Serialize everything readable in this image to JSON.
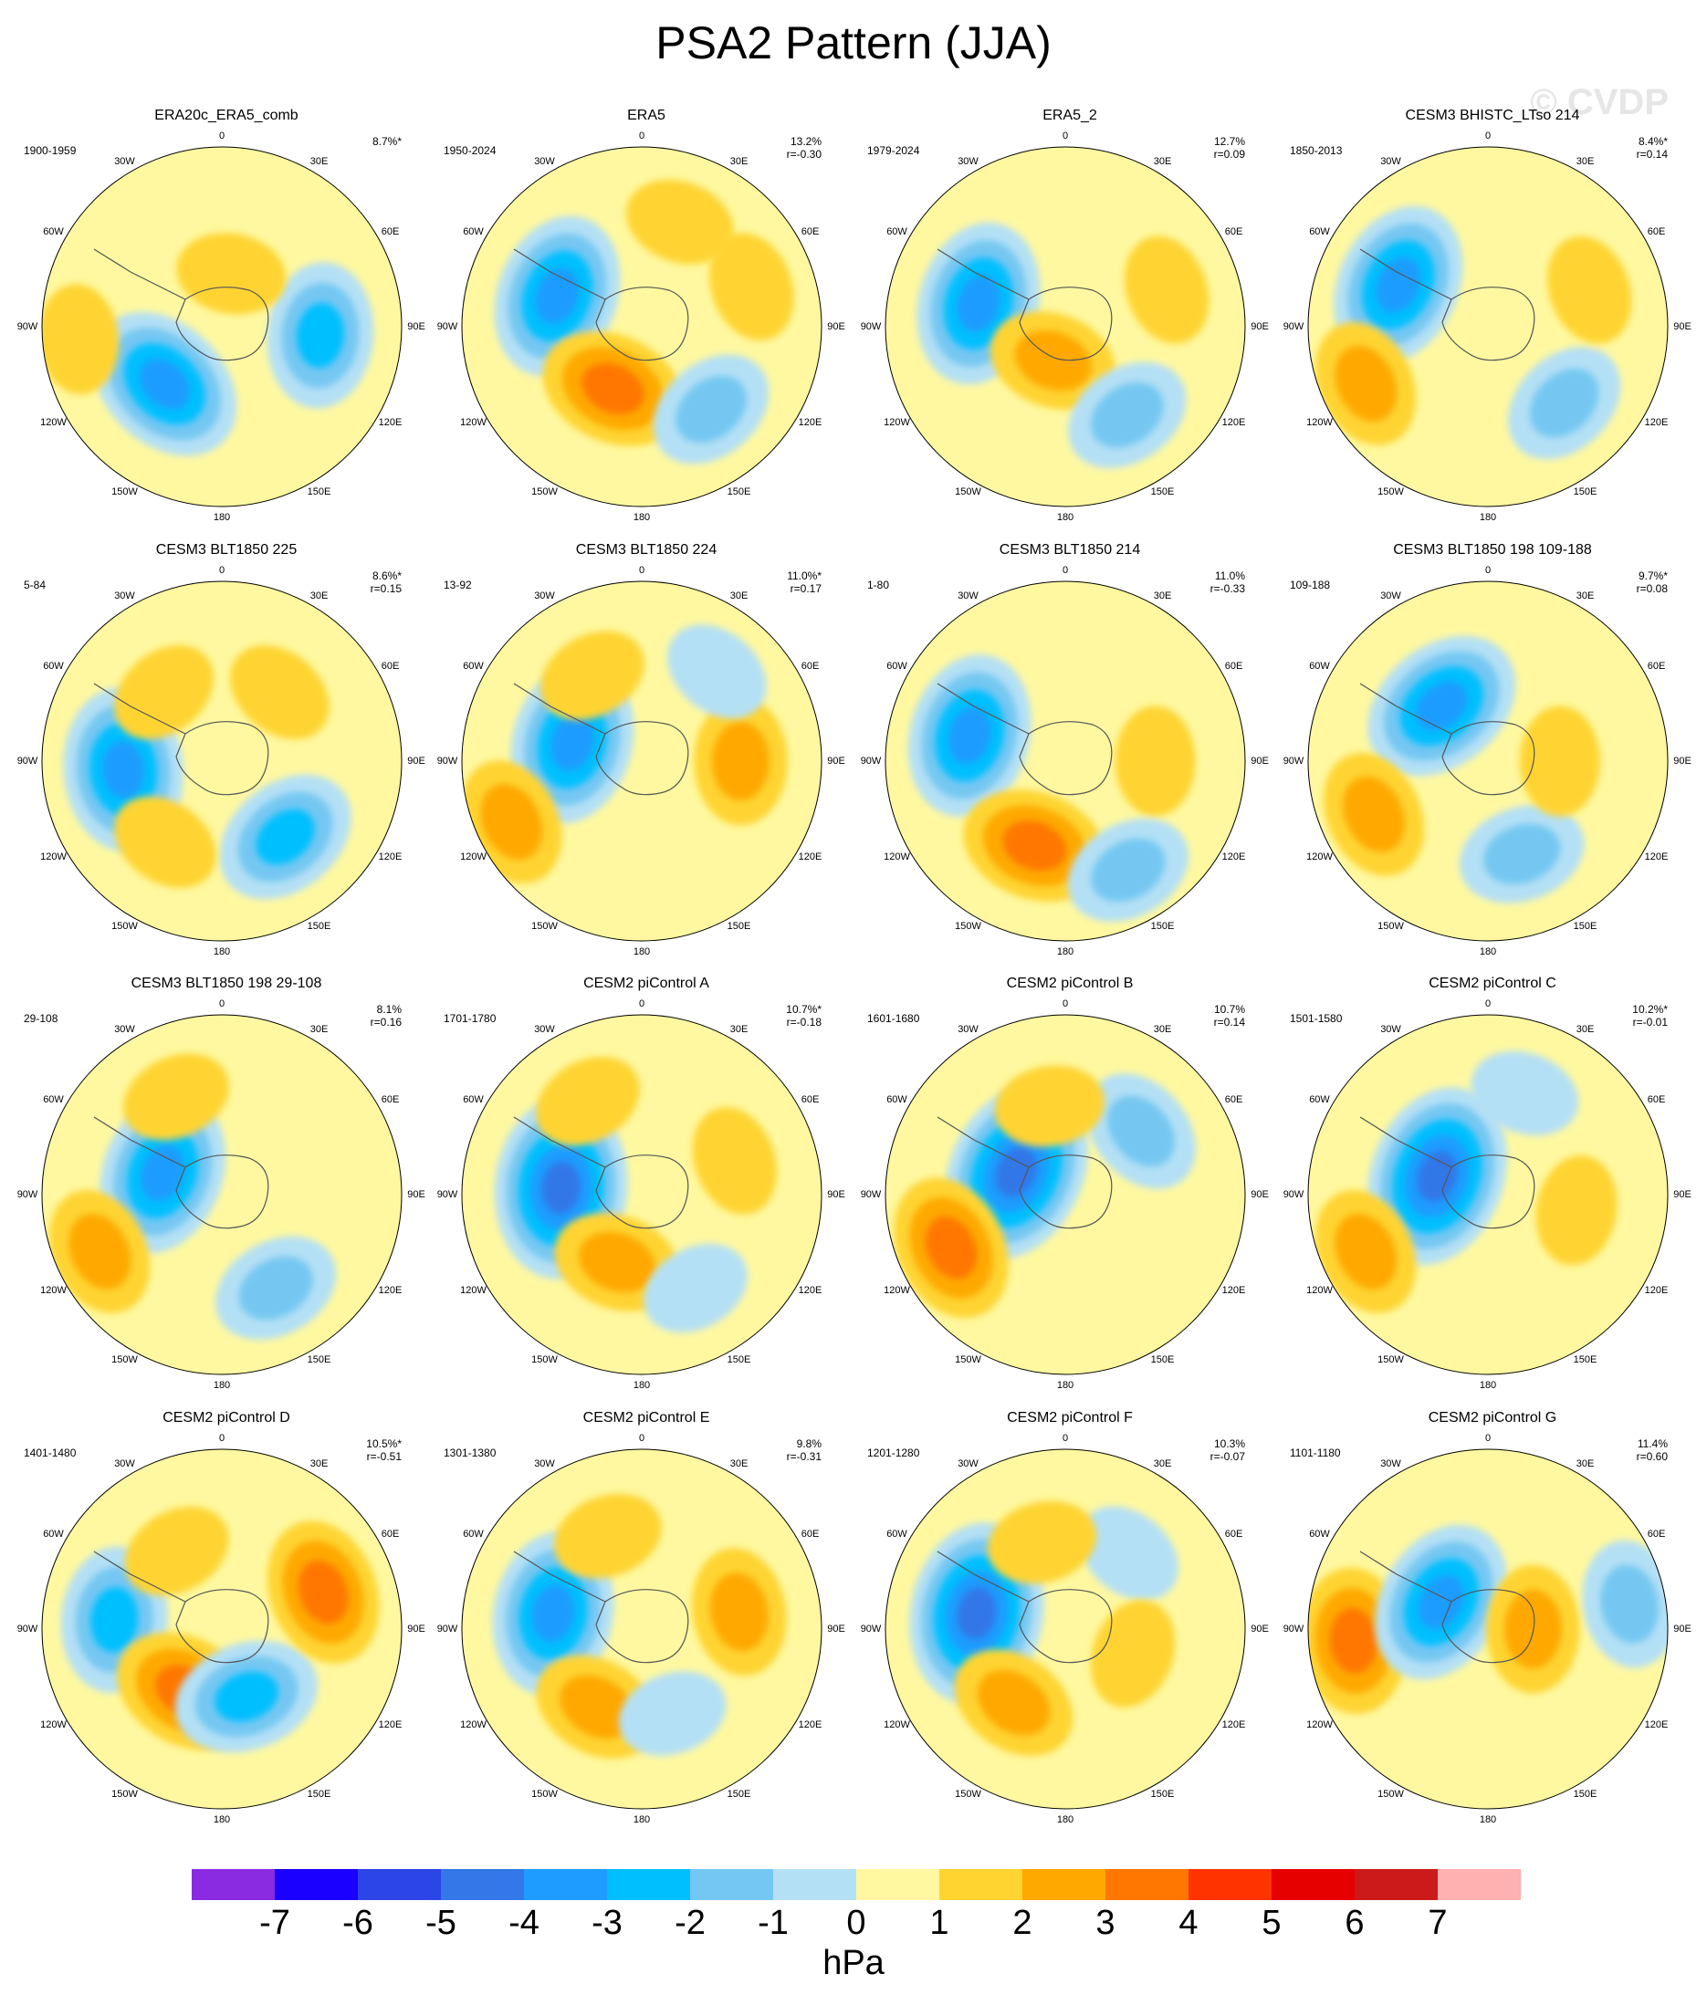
{
  "title": "PSA2 Pattern (JJA)",
  "watermark": "© CVDP",
  "longitude_labels": [
    "0",
    "30E",
    "60E",
    "90E",
    "120E",
    "150E",
    "180",
    "150W",
    "120W",
    "90W",
    "60W",
    "30W"
  ],
  "panels": [
    {
      "title": "ERA20c_ERA5_comb",
      "period": "1900-1959",
      "pct": "8.7%*",
      "r": "",
      "blobs": [
        {
          "lon": 225,
          "lat": 0.45,
          "v": -4
        },
        {
          "lon": 95,
          "lat": 0.55,
          "v": -3
        },
        {
          "lon": 265,
          "lat": 0.8,
          "v": 1
        },
        {
          "lon": 10,
          "lat": 0.3,
          "v": 1
        }
      ]
    },
    {
      "title": "ERA5",
      "period": "1950-2024",
      "pct": "13.2%",
      "r": "r=-0.30",
      "blobs": [
        {
          "lon": 290,
          "lat": 0.5,
          "v": -4
        },
        {
          "lon": 205,
          "lat": 0.38,
          "v": 3
        },
        {
          "lon": 140,
          "lat": 0.6,
          "v": -2
        },
        {
          "lon": 70,
          "lat": 0.65,
          "v": 1
        },
        {
          "lon": 20,
          "lat": 0.62,
          "v": 1
        }
      ]
    },
    {
      "title": "ERA5_2",
      "period": "1979-2024",
      "pct": "12.7%",
      "r": "r=0.09",
      "blobs": [
        {
          "lon": 285,
          "lat": 0.5,
          "v": -4
        },
        {
          "lon": 200,
          "lat": 0.2,
          "v": 2
        },
        {
          "lon": 145,
          "lat": 0.6,
          "v": -2
        },
        {
          "lon": 70,
          "lat": 0.6,
          "v": 1
        }
      ]
    },
    {
      "title": "CESM3 BHISTC_LTso 214",
      "period": "1850-2013",
      "pct": "8.4%*",
      "r": "r=0.14",
      "blobs": [
        {
          "lon": 295,
          "lat": 0.55,
          "v": -4
        },
        {
          "lon": 245,
          "lat": 0.75,
          "v": 2
        },
        {
          "lon": 135,
          "lat": 0.6,
          "v": -2
        },
        {
          "lon": 70,
          "lat": 0.6,
          "v": 1
        }
      ]
    },
    {
      "title": "CESM3 BLT1850 225",
      "period": "5-84",
      "pct": "8.6%*",
      "r": "r=0.15",
      "blobs": [
        {
          "lon": 265,
          "lat": 0.55,
          "v": -4
        },
        {
          "lon": 140,
          "lat": 0.55,
          "v": -3
        },
        {
          "lon": 40,
          "lat": 0.5,
          "v": 1
        },
        {
          "lon": 320,
          "lat": 0.5,
          "v": 1
        },
        {
          "lon": 215,
          "lat": 0.55,
          "v": 1
        }
      ]
    },
    {
      "title": "CESM3 BLT1850 224",
      "period": "13-92",
      "pct": "11.0%*",
      "r": "r=0.17",
      "blobs": [
        {
          "lon": 285,
          "lat": 0.4,
          "v": -4
        },
        {
          "lon": 245,
          "lat": 0.8,
          "v": 2
        },
        {
          "lon": 90,
          "lat": 0.55,
          "v": 2
        },
        {
          "lon": 40,
          "lat": 0.65,
          "v": -1
        },
        {
          "lon": 330,
          "lat": 0.55,
          "v": 1
        }
      ]
    },
    {
      "title": "CESM3 BLT1850 214",
      "period": "1-80",
      "pct": "11.0%",
      "r": "r=-0.33",
      "blobs": [
        {
          "lon": 285,
          "lat": 0.55,
          "v": -4
        },
        {
          "lon": 200,
          "lat": 0.5,
          "v": 3
        },
        {
          "lon": 90,
          "lat": 0.5,
          "v": 1
        },
        {
          "lon": 150,
          "lat": 0.7,
          "v": -2
        }
      ]
    },
    {
      "title": "CESM3 BLT1850 198 109-188",
      "period": "109-188",
      "pct": "9.7%*",
      "r": "r=0.08",
      "blobs": [
        {
          "lon": 320,
          "lat": 0.4,
          "v": -4
        },
        {
          "lon": 245,
          "lat": 0.7,
          "v": 2
        },
        {
          "lon": 160,
          "lat": 0.55,
          "v": -2
        },
        {
          "lon": 90,
          "lat": 0.4,
          "v": 1
        }
      ]
    },
    {
      "title": "CESM3 BLT1850 198 29-108",
      "period": "29-108",
      "pct": "8.1%",
      "r": "r=0.16",
      "blobs": [
        {
          "lon": 290,
          "lat": 0.35,
          "v": -4
        },
        {
          "lon": 245,
          "lat": 0.75,
          "v": 2
        },
        {
          "lon": 150,
          "lat": 0.6,
          "v": -2
        },
        {
          "lon": 335,
          "lat": 0.6,
          "v": 1
        }
      ]
    },
    {
      "title": "CESM2 piControl A",
      "period": "1701-1780",
      "pct": "10.7%*",
      "r": "r=-0.18",
      "blobs": [
        {
          "lon": 275,
          "lat": 0.45,
          "v": -5
        },
        {
          "lon": 200,
          "lat": 0.4,
          "v": 2
        },
        {
          "lon": 70,
          "lat": 0.55,
          "v": 1
        },
        {
          "lon": 330,
          "lat": 0.6,
          "v": 1
        },
        {
          "lon": 150,
          "lat": 0.6,
          "v": -1
        }
      ]
    },
    {
      "title": "CESM2 piControl B",
      "period": "1601-1680",
      "pct": "10.7%",
      "r": "r=0.14",
      "blobs": [
        {
          "lon": 295,
          "lat": 0.3,
          "v": -5
        },
        {
          "lon": 245,
          "lat": 0.7,
          "v": 3
        },
        {
          "lon": 50,
          "lat": 0.55,
          "v": -2
        },
        {
          "lon": 350,
          "lat": 0.5,
          "v": 1
        }
      ]
    },
    {
      "title": "CESM2 piControl C",
      "period": "1501-1580",
      "pct": "10.2%*",
      "r": "r=-0.01",
      "blobs": [
        {
          "lon": 290,
          "lat": 0.3,
          "v": -5
        },
        {
          "lon": 245,
          "lat": 0.75,
          "v": 2
        },
        {
          "lon": 100,
          "lat": 0.5,
          "v": 1
        },
        {
          "lon": 20,
          "lat": 0.6,
          "v": -1
        }
      ]
    },
    {
      "title": "CESM2 piControl D",
      "period": "1401-1480",
      "pct": "10.5%*",
      "r": "r=-0.51",
      "blobs": [
        {
          "lon": 275,
          "lat": 0.6,
          "v": -3
        },
        {
          "lon": 210,
          "lat": 0.4,
          "v": 3
        },
        {
          "lon": 160,
          "lat": 0.4,
          "v": -3
        },
        {
          "lon": 70,
          "lat": 0.6,
          "v": 3
        },
        {
          "lon": 330,
          "lat": 0.5,
          "v": 1
        }
      ]
    },
    {
      "title": "CESM2 piControl E",
      "period": "1301-1380",
      "pct": "9.8%",
      "r": "r=-0.31",
      "blobs": [
        {
          "lon": 280,
          "lat": 0.5,
          "v": -4
        },
        {
          "lon": 210,
          "lat": 0.5,
          "v": 2
        },
        {
          "lon": 160,
          "lat": 0.5,
          "v": -1
        },
        {
          "lon": 80,
          "lat": 0.55,
          "v": 2
        },
        {
          "lon": 340,
          "lat": 0.55,
          "v": 1
        }
      ]
    },
    {
      "title": "CESM2 piControl F",
      "period": "1201-1280",
      "pct": "10.3%",
      "r": "r=-0.07",
      "blobs": [
        {
          "lon": 280,
          "lat": 0.5,
          "v": -5
        },
        {
          "lon": 215,
          "lat": 0.5,
          "v": 2
        },
        {
          "lon": 40,
          "lat": 0.55,
          "v": -1
        },
        {
          "lon": 345,
          "lat": 0.5,
          "v": 1
        },
        {
          "lon": 110,
          "lat": 0.4,
          "v": 1
        }
      ]
    },
    {
      "title": "CESM2 piControl G",
      "period": "1101-1180",
      "pct": "11.4%",
      "r": "r=0.60",
      "blobs": [
        {
          "lon": 265,
          "lat": 0.75,
          "v": 3
        },
        {
          "lon": 300,
          "lat": 0.3,
          "v": -4
        },
        {
          "lon": 90,
          "lat": 0.25,
          "v": 2
        },
        {
          "lon": 80,
          "lat": 0.8,
          "v": -2
        }
      ]
    }
  ],
  "colorbar": {
    "labels": [
      "-7",
      "-6",
      "-5",
      "-4",
      "-3",
      "-2",
      "-1",
      "0",
      "1",
      "2",
      "3",
      "4",
      "5",
      "6",
      "7"
    ],
    "colors": [
      "#8a2be2",
      "#1a00ff",
      "#2c45e6",
      "#3377e8",
      "#1e9cff",
      "#00bfff",
      "#74c7f2",
      "#b4e0f5",
      "#fff8a0",
      "#ffd430",
      "#ffa900",
      "#ff7700",
      "#ff3300",
      "#e60000",
      "#cc1a1a",
      "#ffb0b0"
    ],
    "unit": "hPa"
  }
}
